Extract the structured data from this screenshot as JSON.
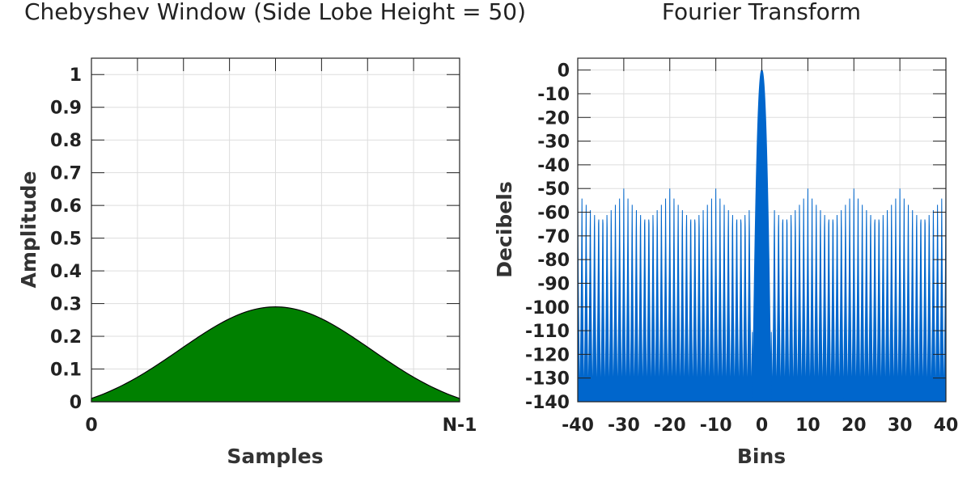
{
  "chart_data": [
    {
      "type": "area",
      "title": "Chebyshev Window (Side Lobe Height = 50)",
      "xlabel": "Samples",
      "ylabel": "Amplitude",
      "x_ticks": [
        "0",
        "N-1"
      ],
      "y_ticks": [
        "0",
        "0.1",
        "0.2",
        "0.3",
        "0.4",
        "0.5",
        "0.6",
        "0.7",
        "0.8",
        "0.9",
        "1"
      ],
      "ylim": [
        0,
        1.05
      ],
      "grid": true,
      "fill_color": "#008000",
      "peak_value": 0.29,
      "end_value": 0.01
    },
    {
      "type": "area",
      "title": "Fourier Transform",
      "xlabel": "Bins",
      "ylabel": "Decibels",
      "x_ticks": [
        "-40",
        "-30",
        "-20",
        "-10",
        "0",
        "10",
        "20",
        "30",
        "40"
      ],
      "y_ticks": [
        "0",
        "-10",
        "-20",
        "-30",
        "-40",
        "-50",
        "-60",
        "-70",
        "-80",
        "-90",
        "-100",
        "-110",
        "-120",
        "-130",
        "-140"
      ],
      "xlim": [
        -40,
        40
      ],
      "ylim": [
        -140,
        5
      ],
      "grid": true,
      "fill_color": "#0066CC",
      "main_lobe_peak_db": 0,
      "main_lobe_halfwidth_bins": 2,
      "side_lobe_db": -50,
      "floor_db": -140
    }
  ]
}
